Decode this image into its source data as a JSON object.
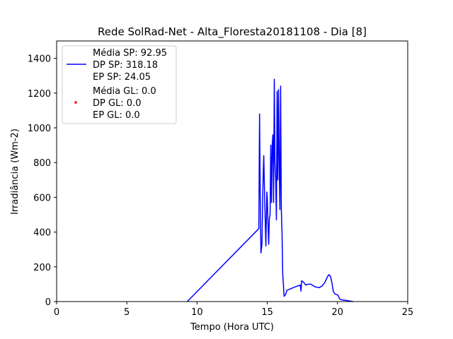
{
  "chart_data": {
    "type": "line",
    "title": "Rede SolRad-Net - Alta_Floresta20181108 - Dia [8]",
    "xlabel": "Tempo (Hora UTC)",
    "ylabel": "Irradiância (Wm-2)",
    "xlim": [
      0,
      25
    ],
    "ylim": [
      0,
      1500
    ],
    "x_ticks": [
      0,
      5,
      10,
      15,
      20,
      25
    ],
    "y_ticks": [
      0,
      200,
      400,
      600,
      800,
      1000,
      1200,
      1400
    ],
    "grid": false,
    "legend_position": "top-left",
    "series": [
      {
        "legend_lines": [
          "Média SP: 92.95",
          "DP SP: 318.18",
          "EP SP: 24.05"
        ],
        "color": "#0000ff",
        "marker": "line",
        "points": [
          [
            9.3,
            0
          ],
          [
            14.4,
            420
          ],
          [
            14.45,
            1080
          ],
          [
            14.5,
            600
          ],
          [
            14.55,
            280
          ],
          [
            14.62,
            330
          ],
          [
            14.7,
            700
          ],
          [
            14.75,
            840
          ],
          [
            14.8,
            650
          ],
          [
            14.85,
            480
          ],
          [
            14.9,
            320
          ],
          [
            14.97,
            630
          ],
          [
            15.0,
            600
          ],
          [
            15.05,
            450
          ],
          [
            15.1,
            330
          ],
          [
            15.15,
            480
          ],
          [
            15.2,
            500
          ],
          [
            15.25,
            900
          ],
          [
            15.3,
            570
          ],
          [
            15.35,
            900
          ],
          [
            15.4,
            960
          ],
          [
            15.45,
            570
          ],
          [
            15.5,
            1280
          ],
          [
            15.55,
            800
          ],
          [
            15.6,
            700
          ],
          [
            15.65,
            470
          ],
          [
            15.7,
            1210
          ],
          [
            15.75,
            700
          ],
          [
            15.8,
            1220
          ],
          [
            15.85,
            800
          ],
          [
            15.9,
            530
          ],
          [
            15.95,
            1240
          ],
          [
            16.0,
            530
          ],
          [
            16.05,
            400
          ],
          [
            16.1,
            160
          ],
          [
            16.2,
            30
          ],
          [
            16.3,
            40
          ],
          [
            16.4,
            65
          ],
          [
            17.0,
            85
          ],
          [
            17.35,
            95
          ],
          [
            17.4,
            60
          ],
          [
            17.45,
            120
          ],
          [
            17.6,
            110
          ],
          [
            17.75,
            95
          ],
          [
            17.9,
            100
          ],
          [
            18.1,
            100
          ],
          [
            18.4,
            85
          ],
          [
            18.7,
            80
          ],
          [
            18.9,
            90
          ],
          [
            19.1,
            110
          ],
          [
            19.3,
            145
          ],
          [
            19.4,
            155
          ],
          [
            19.5,
            145
          ],
          [
            19.6,
            110
          ],
          [
            19.7,
            60
          ],
          [
            19.8,
            45
          ],
          [
            19.95,
            40
          ],
          [
            20.05,
            35
          ],
          [
            20.15,
            15
          ],
          [
            20.3,
            10
          ],
          [
            20.5,
            8
          ],
          [
            20.7,
            5
          ],
          [
            20.9,
            3
          ],
          [
            21.1,
            0
          ]
        ]
      },
      {
        "legend_lines": [
          "Média GL: 0.0",
          "DP GL: 0.0",
          "EP GL: 0.0"
        ],
        "color": "#ff0000",
        "marker": "point",
        "points": []
      }
    ]
  }
}
